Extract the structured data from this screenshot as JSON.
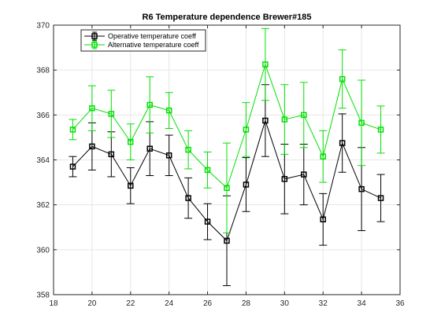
{
  "chart_data": {
    "type": "line",
    "title": "R6 Temperature dependence Brewer#185",
    "xlabel": "",
    "ylabel": "",
    "xlim": [
      18,
      36
    ],
    "ylim": [
      358,
      370
    ],
    "xticks": [
      18,
      20,
      22,
      24,
      26,
      28,
      30,
      32,
      34,
      36
    ],
    "yticks": [
      358,
      360,
      362,
      364,
      366,
      368,
      370
    ],
    "grid": true,
    "legend_position": "top-left",
    "x": [
      19,
      20,
      21,
      22,
      23,
      24,
      25,
      26,
      27,
      28,
      29,
      30,
      31,
      32,
      33,
      34,
      35
    ],
    "series": [
      {
        "name": "Operative temperature coeff",
        "color": "#000000",
        "marker": "square",
        "values": [
          363.7,
          364.6,
          364.25,
          362.85,
          364.5,
          364.2,
          362.3,
          361.25,
          360.4,
          362.9,
          365.75,
          363.15,
          363.35,
          361.35,
          364.75,
          362.7,
          362.3
        ],
        "error": [
          0.45,
          1.05,
          1.0,
          0.8,
          1.2,
          0.9,
          0.9,
          0.8,
          2.0,
          1.2,
          1.6,
          1.55,
          1.35,
          1.15,
          1.3,
          1.85,
          1.05
        ]
      },
      {
        "name": "Alternative temperature coeff",
        "color": "#00e000",
        "marker": "square",
        "values": [
          365.35,
          366.3,
          366.05,
          364.8,
          366.45,
          366.2,
          364.45,
          363.55,
          362.75,
          365.35,
          368.25,
          365.8,
          366.0,
          364.15,
          367.6,
          365.65,
          365.35
        ],
        "error": [
          0.45,
          1.0,
          1.05,
          0.8,
          1.25,
          0.8,
          0.85,
          0.8,
          2.0,
          1.2,
          1.6,
          1.55,
          1.45,
          1.15,
          1.3,
          1.9,
          1.05
        ]
      }
    ]
  }
}
